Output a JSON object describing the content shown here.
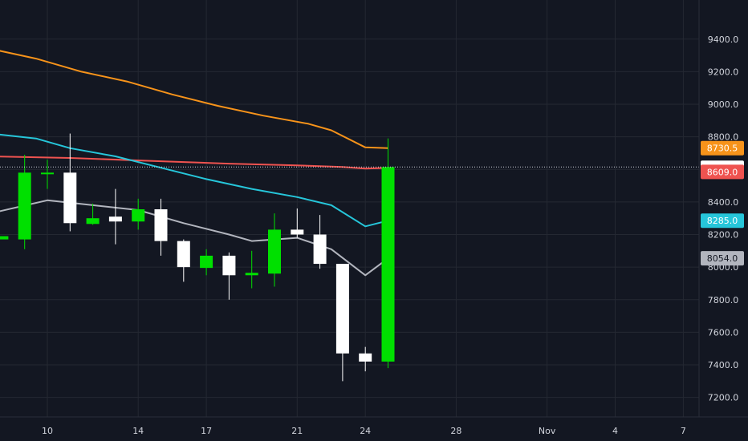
{
  "chart_data": {
    "type": "candlestick",
    "theme": {
      "background": "#131722",
      "grid": "#242832",
      "axis_text": "#d1d4dc"
    },
    "y_ticks": [
      "7200.0",
      "7400.0",
      "7600.0",
      "7800.0",
      "8000.0",
      "8200.0",
      "8400.0",
      "8600.0",
      "8800.0",
      "9000.0",
      "9200.0",
      "9400.0"
    ],
    "ylim": [
      7080,
      9640
    ],
    "x_ticks": [
      {
        "label": "10",
        "day": 10
      },
      {
        "label": "14",
        "day": 14
      },
      {
        "label": "17",
        "day": 17
      },
      {
        "label": "21",
        "day": 21
      },
      {
        "label": "24",
        "day": 24
      },
      {
        "label": "28",
        "day": 28
      },
      {
        "label": "Nov",
        "day": 32
      },
      {
        "label": "4",
        "day": 35
      },
      {
        "label": "7",
        "day": 38
      }
    ],
    "up_color": "#00e000",
    "down_color": "#ffffff",
    "candles": [
      {
        "day": 8,
        "open": 8170,
        "high": 8170,
        "low": 8170,
        "close": 8190
      },
      {
        "day": 9,
        "open": 8170,
        "high": 8690,
        "low": 8110,
        "close": 8580
      },
      {
        "day": 10,
        "open": 8580,
        "high": 8660,
        "low": 8480,
        "close": 8580
      },
      {
        "day": 11,
        "open": 8580,
        "high": 8820,
        "low": 8220,
        "close": 8270
      },
      {
        "day": 12,
        "open": 8265,
        "high": 8390,
        "low": 8260,
        "close": 8300
      },
      {
        "day": 13,
        "open": 8310,
        "high": 8480,
        "low": 8140,
        "close": 8280
      },
      {
        "day": 14,
        "open": 8280,
        "high": 8420,
        "low": 8230,
        "close": 8355
      },
      {
        "day": 15,
        "open": 8355,
        "high": 8420,
        "low": 8070,
        "close": 8160
      },
      {
        "day": 16,
        "open": 8160,
        "high": 8170,
        "low": 7910,
        "close": 8000
      },
      {
        "day": 17,
        "open": 7995,
        "high": 8110,
        "low": 7950,
        "close": 8070
      },
      {
        "day": 18,
        "open": 8070,
        "high": 8090,
        "low": 7800,
        "close": 7950
      },
      {
        "day": 19,
        "open": 7950,
        "high": 8100,
        "low": 7870,
        "close": 7965
      },
      {
        "day": 20,
        "open": 7960,
        "high": 8330,
        "low": 7880,
        "close": 8230
      },
      {
        "day": 21,
        "open": 8230,
        "high": 8360,
        "low": 8180,
        "close": 8200
      },
      {
        "day": 22,
        "open": 8200,
        "high": 8320,
        "low": 7990,
        "close": 8020
      },
      {
        "day": 23,
        "open": 8020,
        "high": 8020,
        "low": 7300,
        "close": 7470
      },
      {
        "day": 24,
        "open": 7470,
        "high": 7510,
        "low": 7360,
        "close": 7420
      },
      {
        "day": 25,
        "open": 7420,
        "high": 8790,
        "low": 7380,
        "close": 8614.5
      }
    ],
    "series": [
      {
        "color": "#f7931a",
        "last_label": "8730.5",
        "points": [
          [
            7.5,
            9340
          ],
          [
            9.5,
            9280
          ],
          [
            11.5,
            9200
          ],
          [
            13.5,
            9140
          ],
          [
            15.5,
            9060
          ],
          [
            17.5,
            8990
          ],
          [
            19.5,
            8930
          ],
          [
            21.5,
            8880
          ],
          [
            22.5,
            8840
          ],
          [
            24,
            8735
          ],
          [
            25,
            8730.5
          ]
        ]
      },
      {
        "color": "#ef5350",
        "last_label": "8609.0",
        "points": [
          [
            7.5,
            8680
          ],
          [
            11,
            8670
          ],
          [
            15,
            8650
          ],
          [
            18,
            8635
          ],
          [
            21,
            8625
          ],
          [
            23,
            8615
          ],
          [
            24,
            8605
          ],
          [
            25,
            8609
          ]
        ]
      },
      {
        "color": "#26c6da",
        "last_label": "8285.0",
        "points": [
          [
            7.5,
            8820
          ],
          [
            9.5,
            8790
          ],
          [
            11,
            8730
          ],
          [
            13,
            8680
          ],
          [
            15,
            8610
          ],
          [
            17,
            8540
          ],
          [
            19,
            8480
          ],
          [
            21,
            8430
          ],
          [
            22.5,
            8380
          ],
          [
            24,
            8250
          ],
          [
            25,
            8285
          ]
        ]
      },
      {
        "color": "#b2b5be",
        "last_label": "8054.0",
        "points": [
          [
            7.5,
            8330
          ],
          [
            10,
            8410
          ],
          [
            12,
            8380
          ],
          [
            14,
            8350
          ],
          [
            16,
            8270
          ],
          [
            18,
            8200
          ],
          [
            19,
            8160
          ],
          [
            21,
            8180
          ],
          [
            22.5,
            8110
          ],
          [
            24,
            7950
          ],
          [
            25,
            8054
          ]
        ]
      }
    ],
    "current_price": {
      "value": 8614.5,
      "label": "8614.5",
      "color": "#ffffff"
    }
  }
}
